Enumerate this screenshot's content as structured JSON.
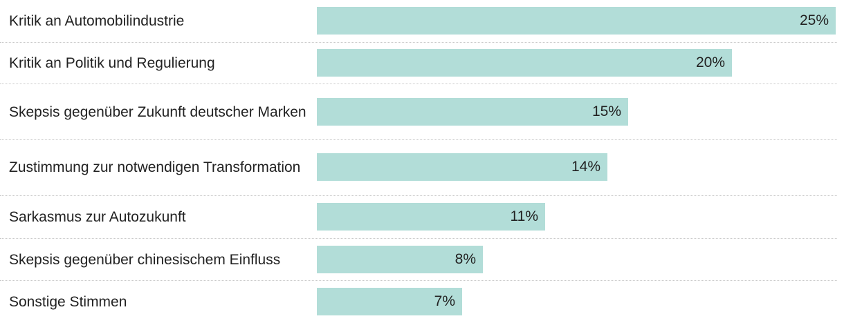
{
  "chart_data": {
    "type": "bar",
    "orientation": "horizontal",
    "categories": [
      "Kritik an Automobilindustrie",
      "Kritik an Politik und Regulierung",
      "Skepsis gegenüber Zukunft deutscher Marken",
      "Zustimmung zur notwendigen Transformation",
      "Sarkasmus zur Autozukunft",
      "Skepsis gegenüber chinesischem Einfluss",
      "Sonstige Stimmen"
    ],
    "values": [
      25,
      20,
      15,
      14,
      11,
      8,
      7
    ],
    "value_labels": [
      "25%",
      "20%",
      "15%",
      "14%",
      "11%",
      "8%",
      "7%"
    ],
    "unit": "%",
    "xlim": [
      0,
      25
    ],
    "bar_color": "#b2ddd8",
    "grid": false,
    "legend": false
  }
}
